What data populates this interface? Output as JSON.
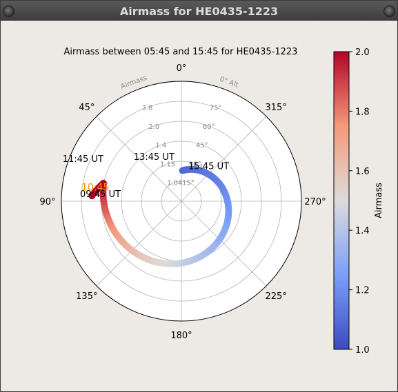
{
  "window": {
    "title": "Airmass for HE0435-1223"
  },
  "chart_data": {
    "type": "polar-scatter",
    "title": "Airmass between 05:45 and 15:45 for HE0435-1223",
    "radial_axis_label": "Airmass",
    "altitude_axis_label": "0° Alt",
    "angular_ticks": [
      {
        "deg": 0,
        "label": "0°"
      },
      {
        "deg": 45,
        "label": "45°"
      },
      {
        "deg": 90,
        "label": "90°"
      },
      {
        "deg": 135,
        "label": "135°"
      },
      {
        "deg": 180,
        "label": "180°"
      },
      {
        "deg": 225,
        "label": "225°"
      },
      {
        "deg": 270,
        "label": "270°"
      },
      {
        "deg": 315,
        "label": "315°"
      }
    ],
    "radial_rings": [
      {
        "alt": 75,
        "alt_label": "75°",
        "airmass_label": "3.8"
      },
      {
        "alt": 60,
        "alt_label": "60°",
        "airmass_label": "2.0"
      },
      {
        "alt": 45,
        "alt_label": "45°",
        "airmass_label": "1.4"
      },
      {
        "alt": 30,
        "alt_label": "30°",
        "airmass_label": "1.15"
      },
      {
        "alt": 15,
        "alt_label": "15°",
        "airmass_label": "1.04"
      }
    ],
    "track": {
      "az_start": 77,
      "alt_start": 60,
      "az_end": 358,
      "alt_end": 23
    },
    "time_labels": [
      {
        "label": "09:45 UT",
        "az": 77,
        "alt": 60
      },
      {
        "label": "11:45 UT",
        "az": 58,
        "alt": 44
      },
      {
        "label": "13:45 UT",
        "az": 20,
        "alt": 32
      },
      {
        "label": "15:45 UT",
        "az": 0,
        "alt": 23
      }
    ],
    "moon_label": {
      "label": "10:45",
      "az": 75,
      "alt": 53,
      "color": "#ff8c00"
    },
    "colorbar": {
      "label": "Airmass",
      "min": 1.0,
      "max": 2.0,
      "ticks": [
        "1.0",
        "1.2",
        "1.4",
        "1.6",
        "1.8",
        "2.0"
      ],
      "colormap": "coolwarm"
    }
  }
}
